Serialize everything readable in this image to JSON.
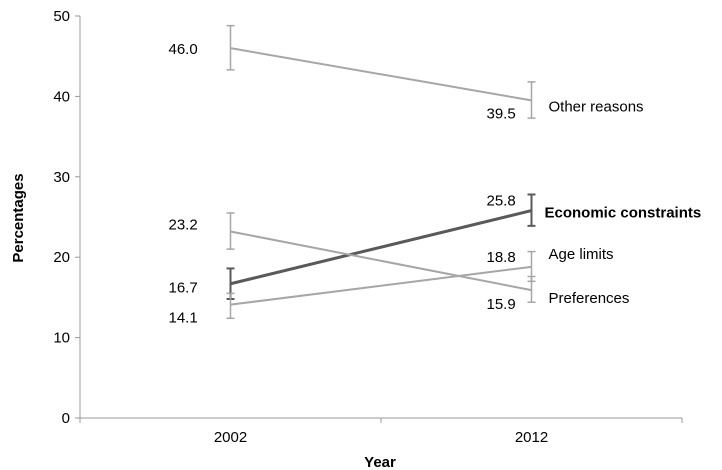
{
  "chart_data": {
    "type": "line",
    "title": "",
    "xlabel": "Year",
    "ylabel": "Percentages",
    "categories": [
      "2002",
      "2012"
    ],
    "ylim": [
      0,
      50
    ],
    "yticks": [
      "0",
      "10",
      "20",
      "30",
      "40",
      "50"
    ],
    "grid": false,
    "legend": "none",
    "series": [
      {
        "name": "Other reasons",
        "values": [
          46.0,
          39.5
        ],
        "value_labels": [
          "46.0",
          "39.5"
        ],
        "error": [
          [
            43.3,
            48.8
          ],
          [
            37.3,
            41.8
          ]
        ],
        "color": "#a6a6a6",
        "emphasis": false
      },
      {
        "name": "Economic constraints",
        "values": [
          16.7,
          25.8
        ],
        "value_labels": [
          "16.7",
          "25.8"
        ],
        "error": [
          [
            14.8,
            18.6
          ],
          [
            23.9,
            27.8
          ]
        ],
        "color": "#595959",
        "emphasis": true
      },
      {
        "name": "Age limits",
        "values": [
          14.1,
          18.8
        ],
        "value_labels": [
          "14.1",
          "18.8"
        ],
        "error": [
          [
            12.4,
            15.5
          ],
          [
            17.0,
            20.7
          ]
        ],
        "color": "#a6a6a6",
        "emphasis": false
      },
      {
        "name": "Preferences",
        "values": [
          23.2,
          15.9
        ],
        "value_labels": [
          "23.2",
          "15.9"
        ],
        "error": [
          [
            21.0,
            25.5
          ],
          [
            14.4,
            17.6
          ]
        ],
        "color": "#a6a6a6",
        "emphasis": false
      }
    ]
  }
}
